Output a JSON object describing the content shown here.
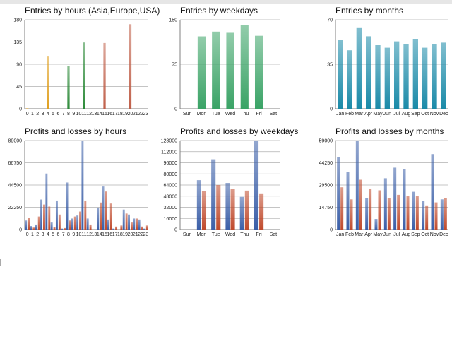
{
  "colors": {
    "grid": "#b0b0b0",
    "axis": "#808080",
    "asia": "#e0a020",
    "europe": "#2e8b3a",
    "usa": "#c0604a",
    "weekday_bar": "#3aa366",
    "month_bar": "#1a8aa8",
    "profit": "#3b5fa8",
    "loss": "#c04a2c"
  },
  "chart_data": [
    {
      "id": "entries-hours",
      "type": "bar",
      "title": "Entries by hours (Asia,Europe,USA)",
      "categories": [
        "0",
        "1",
        "2",
        "3",
        "4",
        "5",
        "6",
        "7",
        "8",
        "9",
        "10",
        "11",
        "12",
        "13",
        "14",
        "15",
        "16",
        "17",
        "18",
        "19",
        "20",
        "21",
        "22",
        "23"
      ],
      "series": [
        {
          "name": "Asia",
          "values": [
            1,
            0,
            0,
            0,
            107,
            0,
            0,
            0,
            0,
            0,
            0,
            0,
            0,
            0,
            0,
            0,
            0,
            0,
            0,
            0,
            0,
            0,
            0,
            0
          ]
        },
        {
          "name": "Europe",
          "values": [
            0,
            0,
            0,
            0,
            0,
            0,
            0,
            0,
            87,
            0,
            0,
            134,
            0,
            0,
            0,
            0,
            0,
            0,
            0,
            0,
            0,
            0,
            0,
            0
          ]
        },
        {
          "name": "USA",
          "values": [
            0,
            0,
            0,
            0,
            0,
            0,
            0,
            0,
            0,
            0,
            0,
            0,
            0,
            0,
            0,
            133,
            0,
            0,
            0,
            0,
            171,
            0,
            0,
            0
          ]
        }
      ],
      "yticks": [
        0,
        45,
        90,
        135,
        180
      ],
      "ylim": [
        0,
        180
      ]
    },
    {
      "id": "entries-weekdays",
      "type": "bar",
      "title": "Entries by weekdays",
      "categories": [
        "Sun",
        "Mon",
        "Tue",
        "Wed",
        "Thu",
        "Fri",
        "Sat"
      ],
      "values": [
        0,
        122,
        130,
        128,
        141,
        123,
        0
      ],
      "yticks": [
        0,
        75,
        150
      ],
      "ylim": [
        0,
        150
      ]
    },
    {
      "id": "entries-months",
      "type": "bar",
      "title": "Entries by months",
      "categories": [
        "Jan",
        "Feb",
        "Mar",
        "Apr",
        "May",
        "Jun",
        "Jul",
        "Aug",
        "Sep",
        "Oct",
        "Nov",
        "Dec"
      ],
      "values": [
        54,
        46,
        64,
        57,
        50,
        48,
        53,
        51,
        55,
        48,
        51,
        52
      ],
      "yticks": [
        0,
        35,
        70
      ],
      "ylim": [
        0,
        70
      ]
    },
    {
      "id": "profits-hours",
      "type": "bar",
      "title": "Profits and losses by hours",
      "categories": [
        "0",
        "1",
        "2",
        "3",
        "4",
        "5",
        "6",
        "7",
        "8",
        "9",
        "10",
        "11",
        "12",
        "13",
        "14",
        "15",
        "16",
        "17",
        "18",
        "19",
        "20",
        "21",
        "22",
        "23"
      ],
      "series": [
        {
          "name": "Profit",
          "values": [
            9000,
            3500,
            5000,
            30000,
            56000,
            7000,
            29000,
            1000,
            47000,
            11000,
            14000,
            89000,
            11000,
            0,
            22000,
            43000,
            10000,
            1000,
            0,
            20000,
            15000,
            11000,
            10000,
            1000
          ]
        },
        {
          "name": "Loss",
          "values": [
            12000,
            2000,
            13000,
            25000,
            23000,
            2500,
            15000,
            1500,
            9000,
            13000,
            18000,
            29000,
            5000,
            0,
            27000,
            38000,
            26000,
            3000,
            4000,
            16000,
            7000,
            11000,
            3000,
            4000
          ]
        }
      ],
      "yticks": [
        0,
        22250,
        44500,
        66750,
        89000
      ],
      "ylim": [
        0,
        89000
      ]
    },
    {
      "id": "profits-weekdays",
      "type": "bar",
      "title": "Profits and losses by weekdays",
      "categories": [
        "Sun",
        "Mon",
        "Tue",
        "Wed",
        "Thu",
        "Fri",
        "Sat"
      ],
      "series": [
        {
          "name": "Profit",
          "values": [
            0,
            71000,
            101000,
            67000,
            47000,
            128000,
            0
          ]
        },
        {
          "name": "Loss",
          "values": [
            0,
            55000,
            64000,
            58000,
            56000,
            52000,
            0
          ]
        }
      ],
      "yticks": [
        0,
        16000,
        32000,
        48000,
        64000,
        80000,
        96000,
        112000,
        128000
      ],
      "ylim": [
        0,
        128000
      ]
    },
    {
      "id": "profits-months",
      "type": "bar",
      "title": "Profits and losses by months",
      "categories": [
        "Jan",
        "Feb",
        "Mar",
        "Apr",
        "May",
        "Jun",
        "Jul",
        "Aug",
        "Sep",
        "Oct",
        "Nov",
        "Dec"
      ],
      "series": [
        {
          "name": "Profit",
          "values": [
            48000,
            38000,
            59000,
            21000,
            7000,
            34000,
            41000,
            40000,
            25000,
            19000,
            50000,
            20000
          ]
        },
        {
          "name": "Loss",
          "values": [
            28000,
            20000,
            33000,
            27000,
            26000,
            21000,
            23000,
            22000,
            22000,
            16000,
            18000,
            21000
          ]
        }
      ],
      "yticks": [
        0,
        14750,
        29500,
        44250,
        59000
      ],
      "ylim": [
        0,
        59000
      ]
    }
  ]
}
